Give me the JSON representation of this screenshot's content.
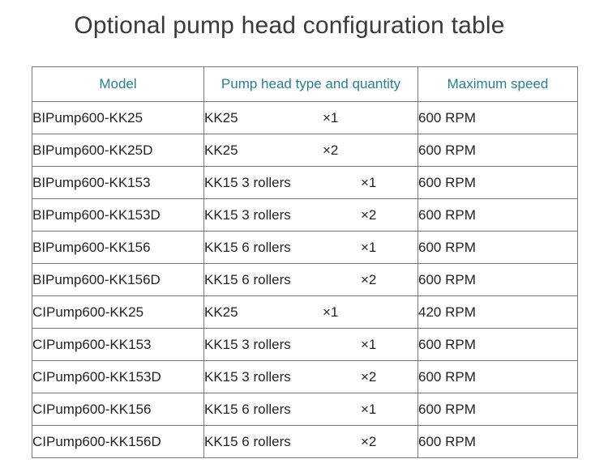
{
  "title": "Optional pump head configuration table",
  "table": {
    "headers": {
      "model": "Model",
      "type": "Pump head type and quantity",
      "speed": "Maximum speed"
    },
    "rows": [
      {
        "model": "BIPump600-KK25",
        "type": "KK25",
        "qty": "×1",
        "speed": "600 RPM"
      },
      {
        "model": "BIPump600-KK25D",
        "type": "KK25",
        "qty": "×2",
        "speed": "600 RPM"
      },
      {
        "model": "BIPump600-KK153",
        "type": "KK15 3 rollers",
        "qty": "×1",
        "speed": "600 RPM"
      },
      {
        "model": "BIPump600-KK153D",
        "type": "KK15 3 rollers",
        "qty": "×2",
        "speed": "600 RPM"
      },
      {
        "model": "BIPump600-KK156",
        "type": "KK15 6 rollers",
        "qty": "×1",
        "speed": "600 RPM"
      },
      {
        "model": "BIPump600-KK156D",
        "type": "KK15 6 rollers",
        "qty": "×2",
        "speed": "600 RPM"
      },
      {
        "model": "CIPump600-KK25",
        "type": "KK25",
        "qty": "×1",
        "speed": "420 RPM"
      },
      {
        "model": "CIPump600-KK153",
        "type": "KK15 3 rollers",
        "qty": "×1",
        "speed": "600 RPM"
      },
      {
        "model": "CIPump600-KK153D",
        "type": "KK15 3 rollers",
        "qty": "×2",
        "speed": "600 RPM"
      },
      {
        "model": "CIPump600-KK156",
        "type": "KK15 6 rollers",
        "qty": "×1",
        "speed": "600 RPM"
      },
      {
        "model": "CIPump600-KK156D",
        "type": "KK15 6 rollers",
        "qty": "×2",
        "speed": "600 RPM"
      }
    ]
  },
  "colors": {
    "header_text": "#2e7d8e",
    "body_text": "#222222",
    "border": "#7a7a7a",
    "title_text": "#3a3a3a"
  }
}
